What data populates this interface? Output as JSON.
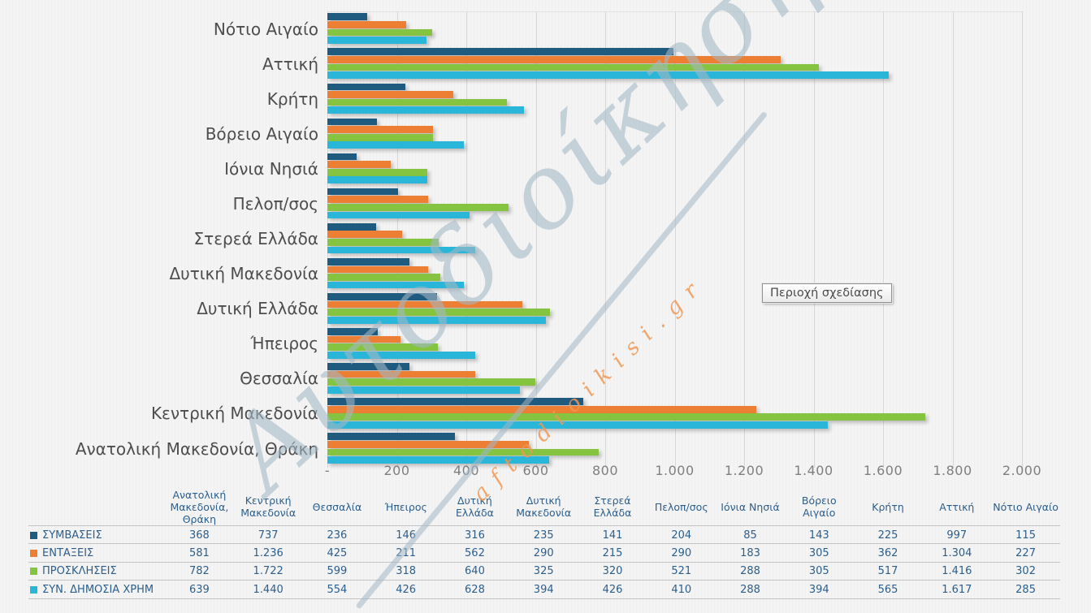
{
  "watermark": {
    "title_text": "Αυτοδιοίκηση",
    "url_text": "aftodioikisi.gr"
  },
  "tooltip": {
    "text": "Περιοχή σχεδίασης"
  },
  "chart_data": {
    "type": "bar",
    "orientation": "horizontal",
    "title": "",
    "categories": [
      "Ανατολική Μακεδονία, Θράκη",
      "Κεντρική Μακεδονία",
      "Θεσσαλία",
      "Ήπειρος",
      "Δυτική Ελλάδα",
      "Δυτική Μακεδονία",
      "Στερεά Ελλάδα",
      "Πελοπ/σος",
      "Ιόνια Νησιά",
      "Βόρειο Αιγαίο",
      "Κρήτη",
      "Αττική",
      "Νότιο Αιγαίο"
    ],
    "category_display": "bottom-to-top (first category at bottom of axis)",
    "series": [
      {
        "name": "ΣΥΜΒΑΣΕΙΣ",
        "color": "#1F5B7E",
        "values": [
          368,
          737,
          236,
          146,
          316,
          235,
          141,
          204,
          85,
          143,
          225,
          997,
          115
        ]
      },
      {
        "name": "ΕΝΤΑΞΕΙΣ",
        "color": "#EC7F33",
        "values": [
          581,
          1236,
          425,
          211,
          562,
          290,
          215,
          290,
          183,
          305,
          362,
          1304,
          227
        ]
      },
      {
        "name": "ΠΡΟΣΚΛΗΣΕΙΣ",
        "color": "#84C441",
        "values": [
          782,
          1722,
          599,
          318,
          640,
          325,
          320,
          521,
          288,
          305,
          517,
          1416,
          302
        ]
      },
      {
        "name": "ΣΥΝ. ΔΗΜΟΣΙΑ ΧΡΗΜ",
        "color": "#29B6D9",
        "values": [
          639,
          1440,
          554,
          426,
          628,
          394,
          426,
          410,
          288,
          394,
          565,
          1617,
          285
        ]
      }
    ],
    "x_axis": {
      "min": 0,
      "max": 2000,
      "tick_step": 200,
      "tick_labels": [
        "-",
        "200",
        "400",
        "600",
        "800",
        "1.000",
        "1.200",
        "1.400",
        "1.600",
        "1.800",
        "2.000"
      ]
    },
    "grid": true,
    "legend_position": "left column of data table"
  },
  "data_table": {
    "column_headers": [
      "Ανατολική Μακεδονία, Θράκη",
      "Κεντρική Μακεδονία",
      "Θεσσαλία",
      "Ήπειρος",
      "Δυτική Ελλάδα",
      "Δυτική Μακεδονία",
      "Στερεά Ελλάδα",
      "Πελοπ/σος",
      "Ιόνια Νησιά",
      "Βόρειο Αιγαίο",
      "Κρήτη",
      "Αττική",
      "Νότιο Αιγαίο"
    ],
    "rows": [
      {
        "label": "ΣΥΜΒΑΣΕΙΣ",
        "values": [
          "368",
          "737",
          "236",
          "146",
          "316",
          "235",
          "141",
          "204",
          "85",
          "143",
          "225",
          "997",
          "115"
        ]
      },
      {
        "label": "ΕΝΤΑΞΕΙΣ",
        "values": [
          "581",
          "1.236",
          "425",
          "211",
          "562",
          "290",
          "215",
          "290",
          "183",
          "305",
          "362",
          "1.304",
          "227"
        ]
      },
      {
        "label": "ΠΡΟΣΚΛΗΣΕΙΣ",
        "values": [
          "782",
          "1.722",
          "599",
          "318",
          "640",
          "325",
          "320",
          "521",
          "288",
          "305",
          "517",
          "1.416",
          "302"
        ]
      },
      {
        "label": "ΣΥΝ. ΔΗΜΟΣΙΑ ΧΡΗΜ",
        "values": [
          "639",
          "1.440",
          "554",
          "426",
          "628",
          "394",
          "426",
          "410",
          "288",
          "394",
          "565",
          "1.617",
          "285"
        ]
      }
    ]
  }
}
